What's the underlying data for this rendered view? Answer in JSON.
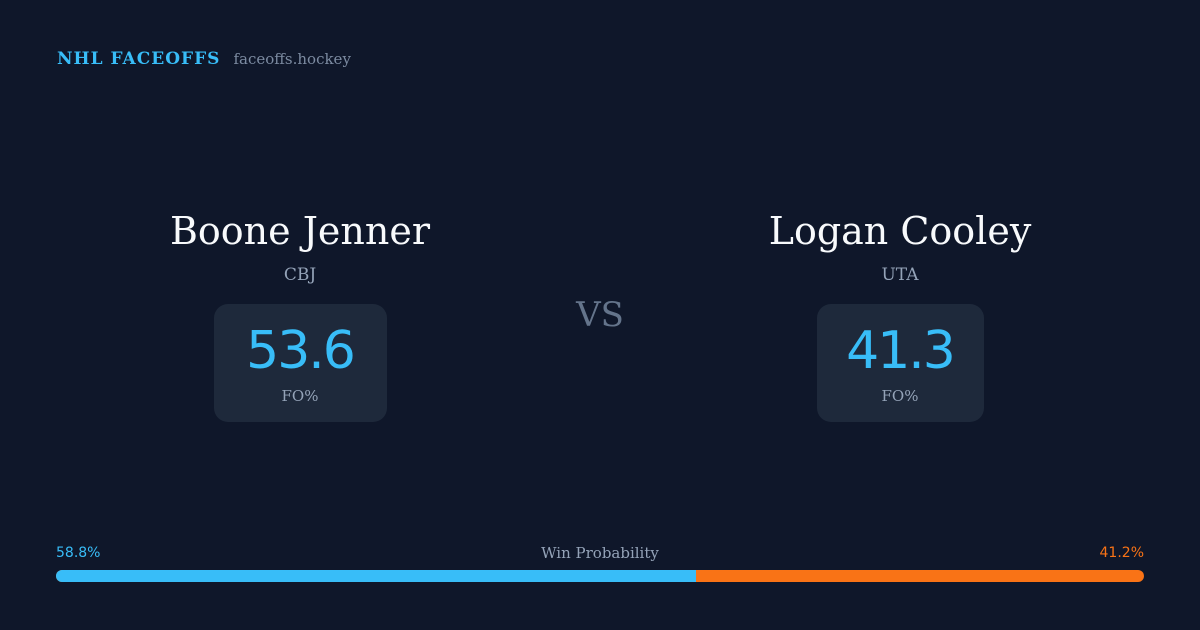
{
  "header": {
    "brand": "NHL FACEOFFS",
    "site": "faceoffs.hockey"
  },
  "players": [
    {
      "name": "Boone Jenner",
      "team": "CBJ",
      "stat_value": "53.6",
      "stat_label": "FO%"
    },
    {
      "name": "Logan Cooley",
      "team": "UTA",
      "stat_value": "41.3",
      "stat_label": "FO%"
    }
  ],
  "vs_label": "VS",
  "win_probability": {
    "title": "Win Probability",
    "left_label": "58.8%",
    "right_label": "41.2%",
    "left_percent": 58.8,
    "right_percent": 41.2,
    "left_color": "#38bdf8",
    "right_color": "#f97316"
  },
  "colors": {
    "background": "#0f172a",
    "card": "#1e293b",
    "accent": "#38bdf8",
    "secondary_accent": "#f97316"
  }
}
